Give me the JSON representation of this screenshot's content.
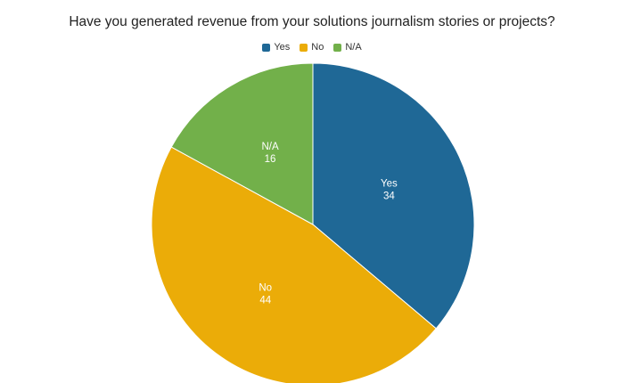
{
  "chart_data": {
    "type": "pie",
    "title": "Have you generated revenue from your solutions journalism stories or projects?",
    "legend_position": "top-center",
    "slices": [
      {
        "label": "Yes",
        "value": 34,
        "color": "#1f6896"
      },
      {
        "label": "No",
        "value": 44,
        "color": "#ebac08"
      },
      {
        "label": "N/A",
        "value": 16,
        "color": "#72b04a"
      }
    ]
  }
}
